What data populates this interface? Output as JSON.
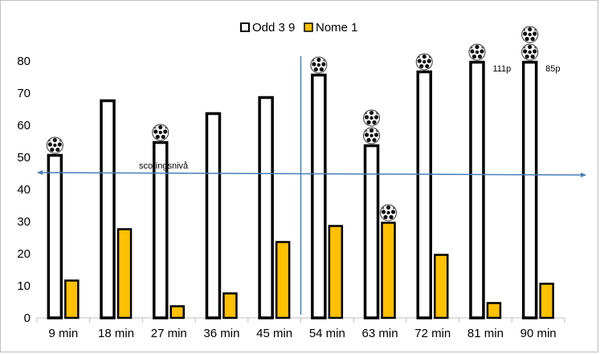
{
  "chart_data": {
    "type": "bar",
    "categories": [
      "9 min",
      "18 min",
      "27 min",
      "36 min",
      "45 min",
      "54 min",
      "63 min",
      "72 min",
      "81 min",
      "90 min"
    ],
    "series": [
      {
        "name": "Odd 3 9",
        "values": [
          51,
          68,
          55,
          64,
          69,
          76,
          54,
          77,
          80,
          80
        ],
        "color": "#ffffff",
        "stroke": "#000000"
      },
      {
        "name": "Nome 1",
        "values": [
          12,
          28,
          4,
          8,
          24,
          29,
          30,
          20,
          5,
          11
        ],
        "color": "#ffc000",
        "stroke": "#000000"
      }
    ],
    "ylim": [
      0,
      80
    ],
    "yticks": [
      0,
      10,
      20,
      30,
      40,
      50,
      60,
      70,
      80
    ],
    "legend_position": "top-center",
    "grid": false,
    "annotations": {
      "scoring_line_label": "scoringsnivå",
      "scoring_line_value": 45,
      "vertical_divider_after_category": "45 min",
      "bar_labels": [
        {
          "category": "81 min",
          "series": "Odd 3 9",
          "text": "111p"
        },
        {
          "category": "90 min",
          "series": "Odd 3 9",
          "text": "85p"
        }
      ],
      "goal_icons": [
        {
          "category": "9 min",
          "series": "Odd 3 9",
          "count": 1
        },
        {
          "category": "27 min",
          "series": "Odd 3 9",
          "count": 1
        },
        {
          "category": "54 min",
          "series": "Odd 3 9",
          "count": 1
        },
        {
          "category": "63 min",
          "series": "Odd 3 9",
          "count": 2
        },
        {
          "category": "63 min",
          "series": "Nome 1",
          "count": 1
        },
        {
          "category": "72 min",
          "series": "Odd 3 9",
          "count": 1
        },
        {
          "category": "81 min",
          "series": "Odd 3 9",
          "count": 1
        },
        {
          "category": "90 min",
          "series": "Odd 3 9",
          "count": 2
        }
      ],
      "icon_name": "soccer-ball-icon"
    }
  }
}
